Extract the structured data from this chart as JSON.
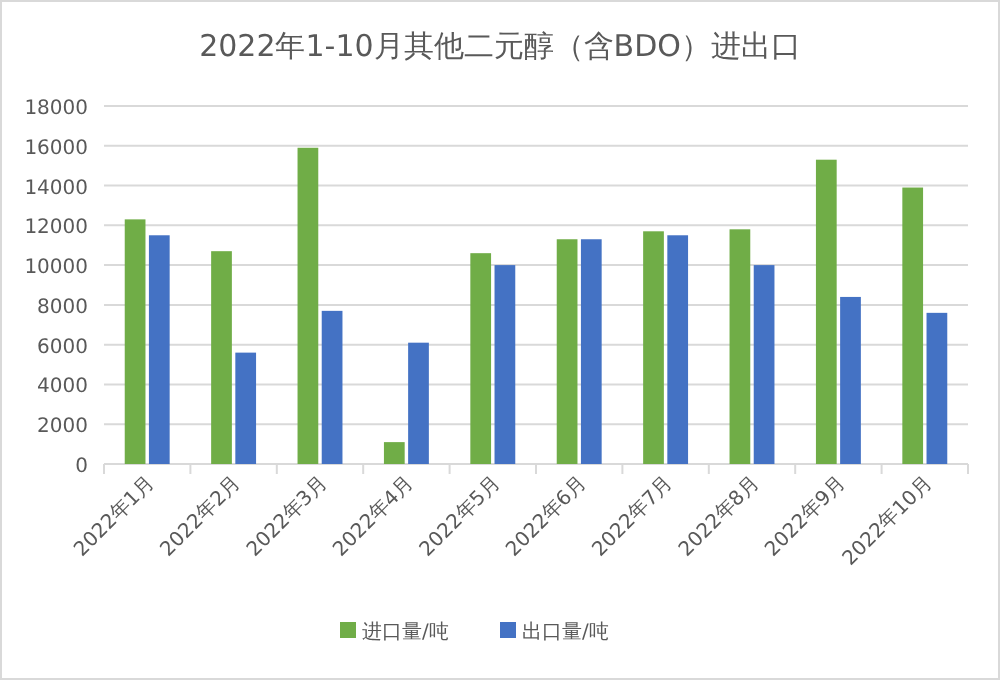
{
  "chart_data": {
    "type": "bar",
    "title": "2022年1-10月其他二元醇（含BDO）进出口",
    "categories": [
      "2022年1月",
      "2022年2月",
      "2022年3月",
      "2022年4月",
      "2022年5月",
      "2022年6月",
      "2022年7月",
      "2022年8月",
      "2022年9月",
      "2022年10月"
    ],
    "series": [
      {
        "name": "进口量/吨",
        "color": "#70ad47",
        "values": [
          12300,
          10700,
          15900,
          1100,
          10600,
          11300,
          11700,
          11800,
          15300,
          13900
        ]
      },
      {
        "name": "出口量/吨",
        "color": "#4472c4",
        "values": [
          11500,
          5600,
          7700,
          6100,
          10000,
          11300,
          11500,
          10000,
          8400,
          7600
        ]
      }
    ],
    "ylim": [
      0,
      18000
    ],
    "yticks": [
      0,
      2000,
      4000,
      6000,
      8000,
      10000,
      12000,
      14000,
      16000,
      18000
    ],
    "grid": "y",
    "legend": "bottom"
  }
}
